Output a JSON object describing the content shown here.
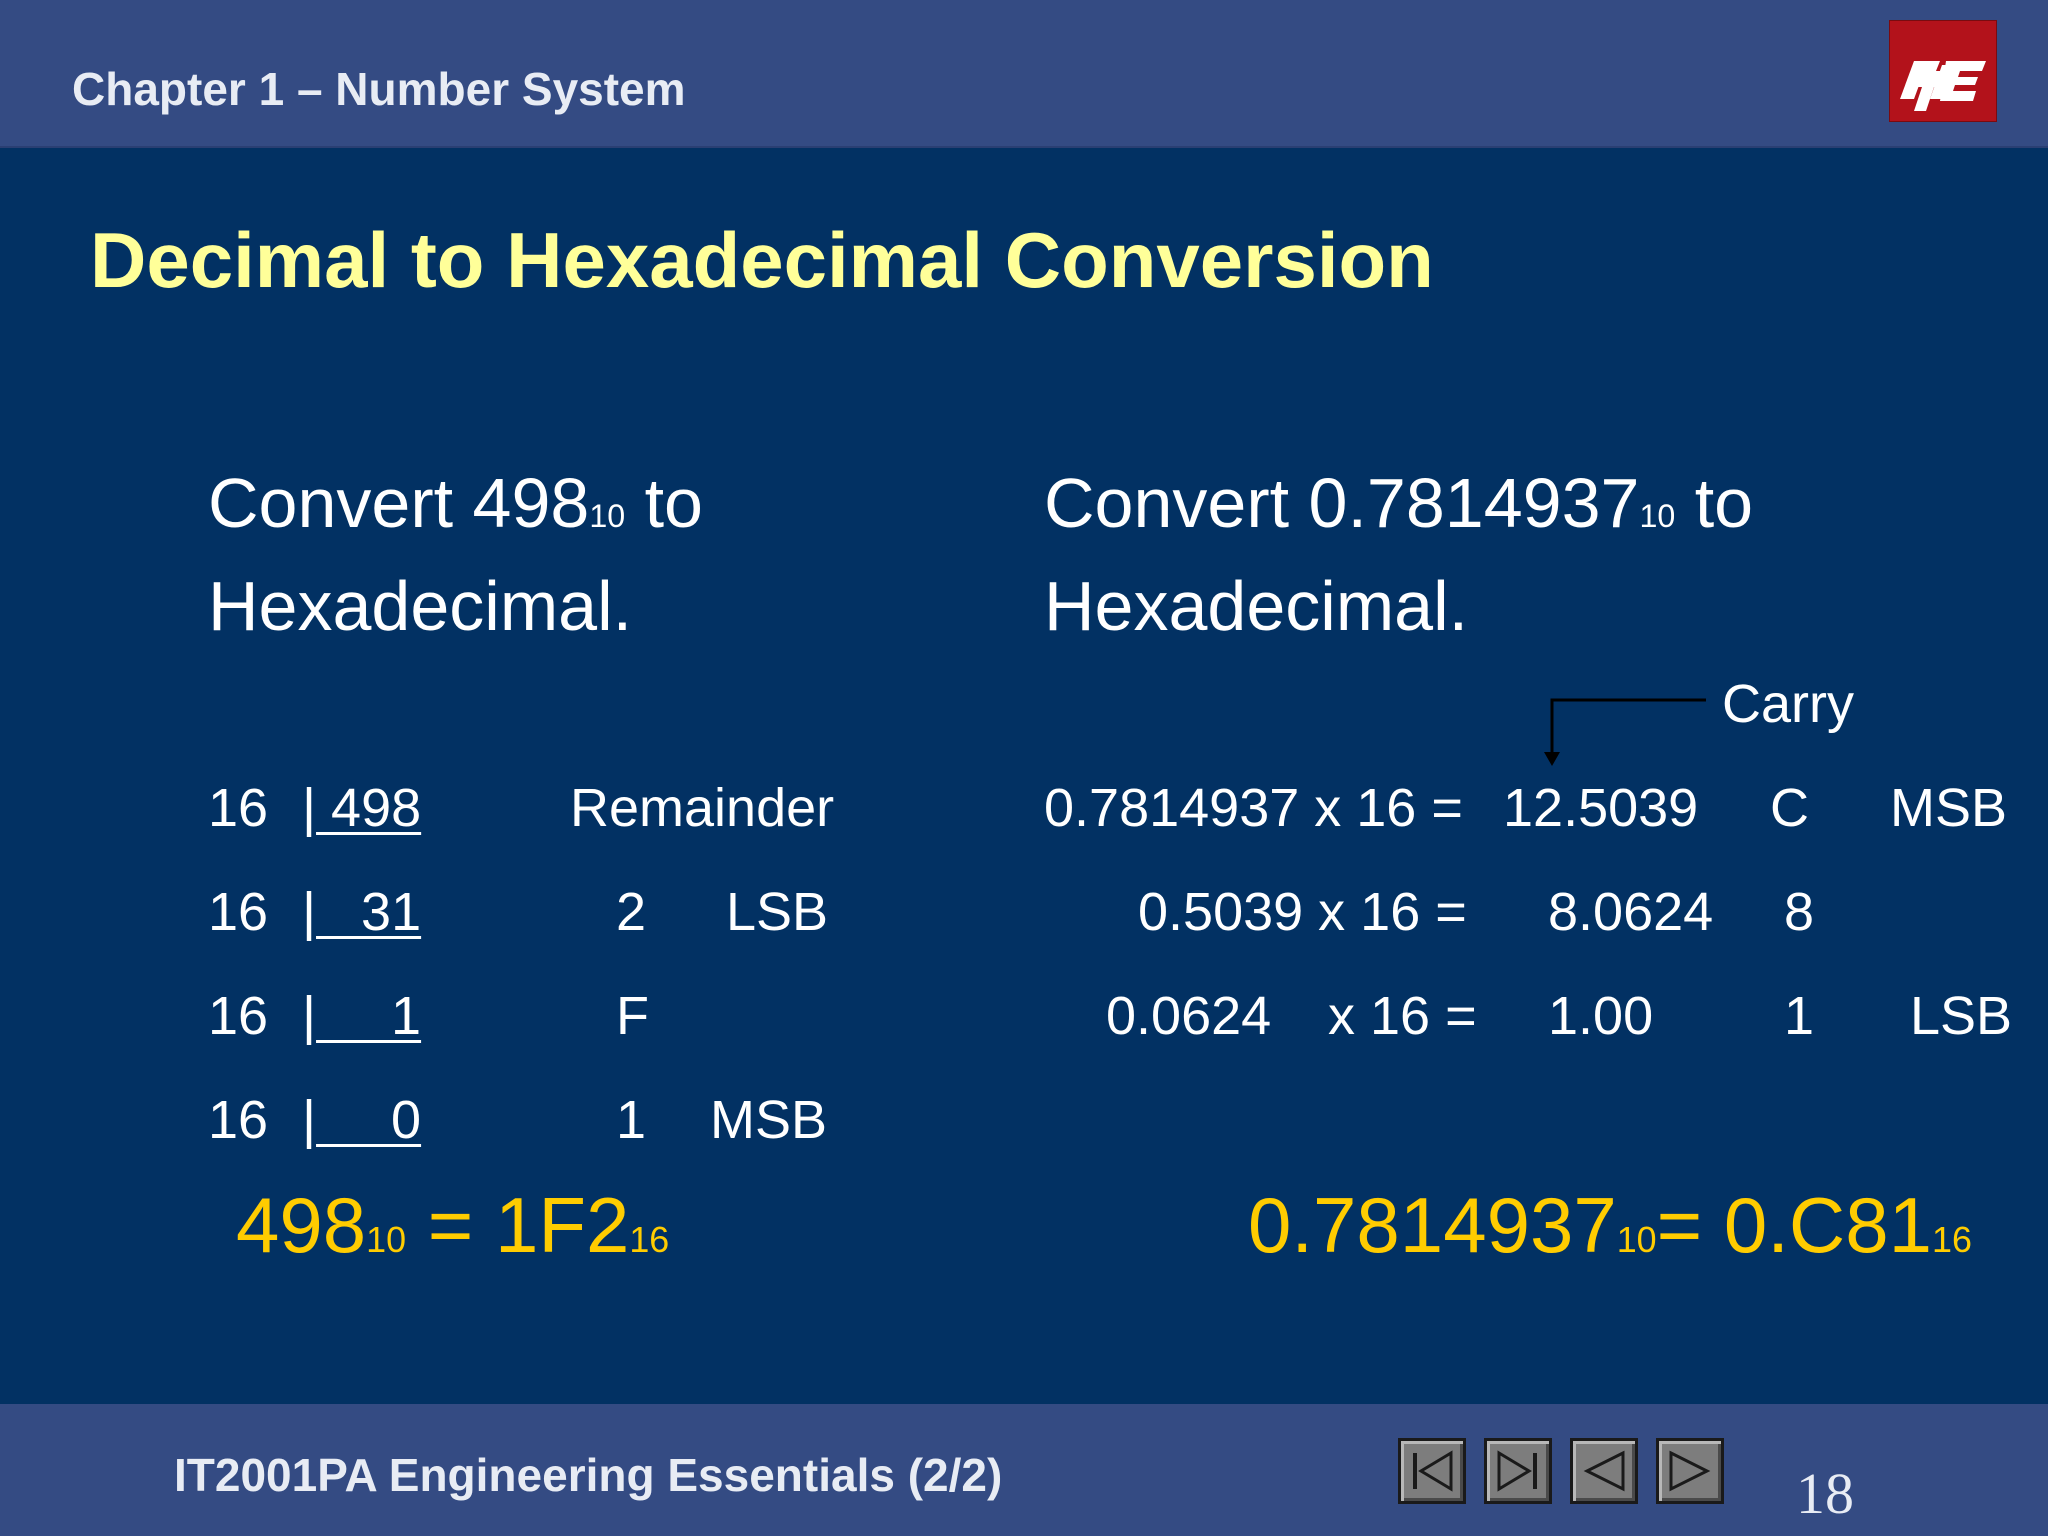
{
  "header": {
    "chapter": "Chapter 1 – Number System",
    "logo": "ITE"
  },
  "title": "Decimal to Hexadecimal Conversion",
  "left": {
    "heading_pre": "Convert 498",
    "heading_sub": "10",
    "heading_post": " to",
    "heading_line2": "Hexadecimal.",
    "remainder_label": "Remainder",
    "rows": [
      {
        "divisor": "16",
        "dividend": " 498",
        "digit": "",
        "tag": ""
      },
      {
        "divisor": "16",
        "dividend": "   31",
        "digit": "2",
        "tag": "LSB"
      },
      {
        "divisor": "16",
        "dividend": "     1",
        "digit": "F",
        "tag": ""
      },
      {
        "divisor": "16",
        "dividend": "     0",
        "digit": "1",
        "tag": "MSB"
      }
    ],
    "result": {
      "a": "498",
      "a_sub": "10",
      "eq": " = 1F2",
      "b_sub": "16"
    }
  },
  "right": {
    "heading_pre": "Convert 0.7814937",
    "heading_sub": "10",
    "heading_post": " to",
    "heading_line2": "Hexadecimal.",
    "carry_label": "Carry",
    "rows": [
      {
        "mult": "0.7814937 x 16 =",
        "product": "12.5039",
        "digit": "C",
        "tag": "MSB"
      },
      {
        "mult": "0.5039 x 16 =",
        "product": "8.0624",
        "digit": "8",
        "tag": ""
      },
      {
        "mult": "0.0624",
        "mult2": "x 16 =",
        "product": "1.00",
        "digit": "1",
        "tag": "LSB"
      }
    ],
    "result": {
      "a": "0.7814937",
      "a_sub": "10",
      "eq": "= 0.C81",
      "b_sub": "16"
    }
  },
  "footer": {
    "course": "IT2001PA Engineering Essentials (2/2)",
    "page": "18"
  },
  "colors": {
    "background": "#023163",
    "bar": "#344b83",
    "title": "#ffff99",
    "result": "#ffcc00",
    "logo": "#b3121b"
  }
}
